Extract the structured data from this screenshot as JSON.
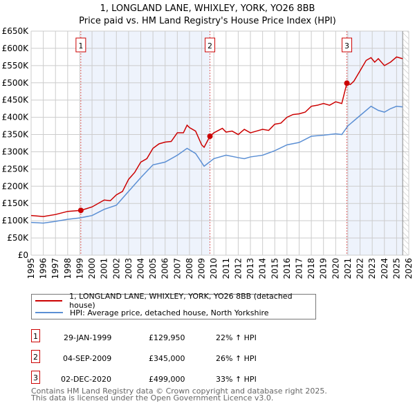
{
  "chart_data": {
    "type": "line",
    "title": "1, LONGLAND LANE, WHIXLEY, YORK, YO26 8BB",
    "subtitle": "Price paid vs. HM Land Registry's House Price Index (HPI)",
    "xlim": [
      1995,
      2026
    ],
    "ylim": [
      0,
      650000
    ],
    "yticks": [
      0,
      50000,
      100000,
      150000,
      200000,
      250000,
      300000,
      350000,
      400000,
      450000,
      500000,
      550000,
      600000,
      650000
    ],
    "ytick_labels": [
      "£0",
      "£50K",
      "£100K",
      "£150K",
      "£200K",
      "£250K",
      "£300K",
      "£350K",
      "£400K",
      "£450K",
      "£500K",
      "£550K",
      "£600K",
      "£650K"
    ],
    "xticks": [
      1995,
      1996,
      1997,
      1998,
      1999,
      2000,
      2001,
      2002,
      2003,
      2004,
      2005,
      2006,
      2007,
      2008,
      2009,
      2010,
      2011,
      2012,
      2013,
      2014,
      2015,
      2016,
      2017,
      2018,
      2019,
      2020,
      2021,
      2022,
      2023,
      2024,
      2025,
      2026
    ],
    "grid": true,
    "data_end": 2025.5,
    "series": [
      {
        "name": "1, LONGLAND LANE, WHIXLEY, YORK, YO26 8BB (detached house)",
        "color": "#cc0000",
        "x": [
          1995,
          1996,
          1997,
          1998,
          1999.08,
          2000,
          2001,
          2001.5,
          2002,
          2002.5,
          2003,
          2003.5,
          2004,
          2004.5,
          2005,
          2005.5,
          2006,
          2006.5,
          2007,
          2007.5,
          2007.8,
          2008,
          2008.5,
          2009,
          2009.2,
          2009.68,
          2010,
          2010.7,
          2011,
          2011.5,
          2012,
          2012.5,
          2013,
          2013.5,
          2014,
          2014.5,
          2015,
          2015.5,
          2016,
          2016.5,
          2017,
          2017.5,
          2018,
          2018.5,
          2019,
          2019.5,
          2020,
          2020.5,
          2020.92,
          2021.2,
          2021.5,
          2022,
          2022.5,
          2022.9,
          2023.2,
          2023.5,
          2024,
          2024.5,
          2025,
          2025.5
        ],
        "values": [
          115000,
          112000,
          118000,
          127000,
          129950,
          140000,
          160000,
          158000,
          175000,
          185000,
          220000,
          240000,
          270000,
          280000,
          310000,
          323000,
          328000,
          330000,
          355000,
          355000,
          377000,
          370000,
          360000,
          320000,
          313000,
          345000,
          355000,
          368000,
          357000,
          360000,
          350000,
          365000,
          355000,
          360000,
          365000,
          362000,
          380000,
          383000,
          400000,
          408000,
          410000,
          415000,
          432000,
          435000,
          440000,
          435000,
          445000,
          440000,
          499000,
          495000,
          505000,
          535000,
          565000,
          573000,
          560000,
          570000,
          550000,
          560000,
          575000,
          570000
        ]
      },
      {
        "name": "HPI: Average price, detached house, North Yorkshire",
        "color": "#5b8fd4",
        "x": [
          1995,
          1996,
          1997,
          1998,
          1999,
          2000,
          2001,
          2002,
          2003,
          2004,
          2005,
          2006,
          2007,
          2007.8,
          2008.5,
          2009.2,
          2010,
          2011,
          2012,
          2012.5,
          2013,
          2014,
          2015,
          2016,
          2017,
          2018,
          2019,
          2020,
          2020.5,
          2021,
          2022,
          2022.9,
          2023.5,
          2024,
          2024.5,
          2025,
          2025.5
        ],
        "values": [
          95000,
          93000,
          98000,
          104000,
          108000,
          115000,
          133000,
          145000,
          185000,
          225000,
          262000,
          270000,
          290000,
          310000,
          295000,
          258000,
          280000,
          290000,
          283000,
          280000,
          285000,
          290000,
          303000,
          320000,
          327000,
          345000,
          348000,
          352000,
          350000,
          375000,
          405000,
          432000,
          420000,
          415000,
          425000,
          432000,
          430000
        ]
      }
    ],
    "sales": [
      {
        "id": "1",
        "x": 1999.08,
        "date": "29-JAN-1999",
        "price": "£129,950",
        "value": 129950,
        "hpi": "22% ↑ HPI"
      },
      {
        "id": "2",
        "x": 2009.68,
        "date": "04-SEP-2009",
        "price": "£345,000",
        "value": 345000,
        "hpi": "26% ↑ HPI"
      },
      {
        "id": "3",
        "x": 2020.92,
        "date": "02-DEC-2020",
        "price": "£499,000",
        "value": 499000,
        "hpi": "33% ↑ HPI"
      }
    ],
    "legend_placement": "bottom"
  },
  "footer": {
    "line1": "Contains HM Land Registry data © Crown copyright and database right 2025.",
    "line2": "This data is licensed under the Open Government Licence v3.0."
  }
}
